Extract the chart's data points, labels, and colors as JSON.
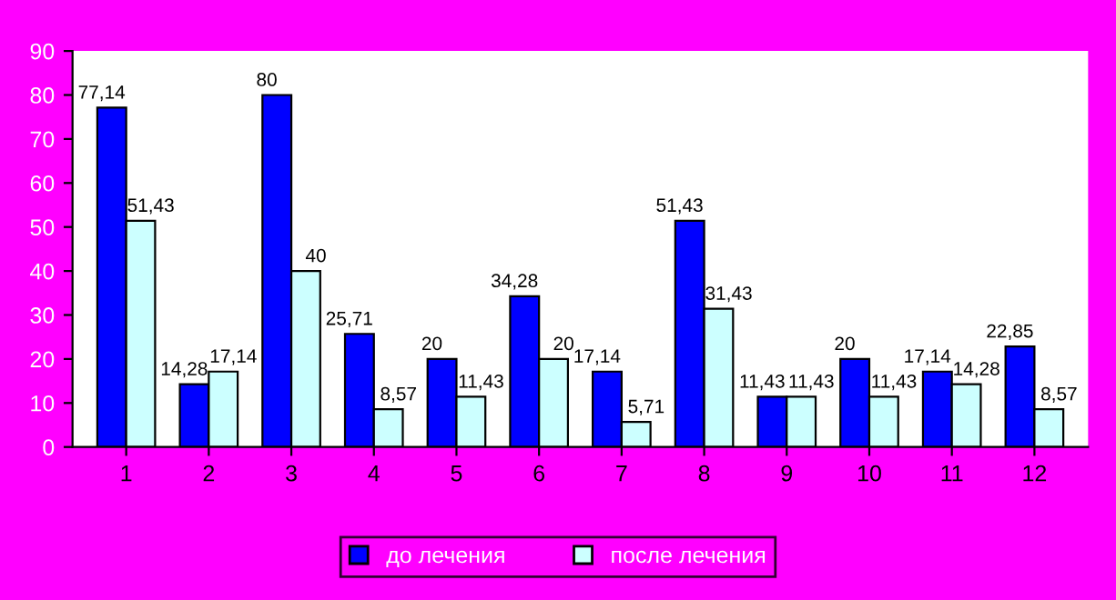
{
  "chart_data": {
    "type": "bar",
    "categories": [
      "1",
      "2",
      "3",
      "4",
      "5",
      "6",
      "7",
      "8",
      "9",
      "10",
      "11",
      "12"
    ],
    "series": [
      {
        "name": "до лечения",
        "color": "#0000ff",
        "values": [
          77.14,
          14.28,
          80,
          25.71,
          20,
          34.28,
          17.14,
          51.43,
          11.43,
          20,
          17.14,
          22.85
        ],
        "value_labels": [
          "77,14",
          "14,28",
          "80",
          "25,71",
          "20",
          "34,28",
          "17,14",
          "51,43",
          "11,43",
          "20",
          "17,14",
          "22,85"
        ]
      },
      {
        "name": "после лечения",
        "color": "#ccffff",
        "values": [
          51.43,
          17.14,
          40,
          8.57,
          11.43,
          20,
          5.71,
          31.43,
          11.43,
          11.43,
          14.28,
          8.57
        ],
        "value_labels": [
          "51,43",
          "17,14",
          "40",
          "8,57",
          "11,43",
          "20",
          "5,71",
          "31,43",
          "11,43",
          "11,43",
          "14,28",
          "8,57"
        ]
      }
    ],
    "ylim": [
      0,
      90
    ],
    "yticks": [
      0,
      10,
      20,
      30,
      40,
      50,
      60,
      70,
      80,
      90
    ],
    "grid": false,
    "legend": "bottom"
  }
}
